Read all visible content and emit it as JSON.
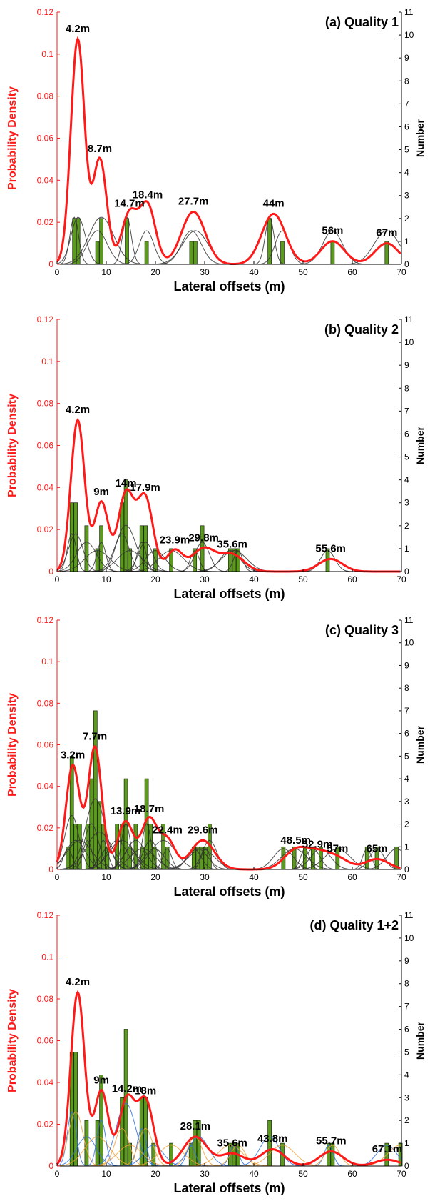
{
  "colors": {
    "pdf_curve": "#ff1a1a",
    "bars": "#5b9a1f",
    "bar_edge": "#1d2b0e",
    "component_curves": "#333333",
    "component_curves_q1": "#2f6fe0",
    "component_curves_q2": "#f2a23a",
    "left_axis": "#ff1a1a",
    "right_axis": "#000000"
  },
  "chart_data": [
    {
      "type": "bar",
      "title": "(a) Quality 1",
      "xlabel": "Lateral offsets (m)",
      "ylabel": "Probability Density",
      "y2label": "Number",
      "xlim": [
        0,
        70
      ],
      "ylim": [
        0,
        0.12
      ],
      "y2lim": [
        0,
        11
      ],
      "x_ticks": [
        "0",
        "10",
        "20",
        "30",
        "40",
        "50",
        "60",
        "70"
      ],
      "y_ticks": [
        "0",
        "0.02",
        "0.04",
        "0.06",
        "0.08",
        "0.1",
        "0.12"
      ],
      "y2_ticks": [
        "0",
        "1",
        "2",
        "3",
        "4",
        "5",
        "6",
        "7",
        "8",
        "9",
        "10",
        "11"
      ],
      "bars": [
        {
          "x": 3.5,
          "count": 2
        },
        {
          "x": 4.3,
          "count": 2
        },
        {
          "x": 8.2,
          "count": 1
        },
        {
          "x": 9.0,
          "count": 2
        },
        {
          "x": 14.2,
          "count": 2
        },
        {
          "x": 18.2,
          "count": 1
        },
        {
          "x": 27.3,
          "count": 1
        },
        {
          "x": 28.1,
          "count": 1
        },
        {
          "x": 43.2,
          "count": 2
        },
        {
          "x": 45.8,
          "count": 1
        },
        {
          "x": 56.0,
          "count": 1
        },
        {
          "x": 67.0,
          "count": 1
        }
      ],
      "peaks": [
        {
          "x": 4.2,
          "y": 0.107,
          "label": "4.2m"
        },
        {
          "x": 8.7,
          "y": 0.05,
          "label": "8.7m"
        },
        {
          "x": 14.7,
          "y": 0.024,
          "label": "14.7m"
        },
        {
          "x": 18.4,
          "y": 0.028,
          "label": "18.4m"
        },
        {
          "x": 27.7,
          "y": 0.025,
          "label": "27.7m"
        },
        {
          "x": 44,
          "y": 0.024,
          "label": "44m"
        },
        {
          "x": 56,
          "y": 0.011,
          "label": "56m"
        },
        {
          "x": 67,
          "y": 0.01,
          "label": "67m"
        }
      ]
    },
    {
      "type": "bar",
      "title": "(b) Quality 2",
      "xlabel": "Lateral offsets (m)",
      "ylabel": "Probability Density",
      "y2label": "Number",
      "xlim": [
        0,
        70
      ],
      "ylim": [
        0,
        0.12
      ],
      "y2lim": [
        0,
        11
      ],
      "x_ticks": [
        "0",
        "10",
        "20",
        "30",
        "40",
        "50",
        "60",
        "70"
      ],
      "y_ticks": [
        "0",
        "0.02",
        "0.04",
        "0.06",
        "0.08",
        "0.1",
        "0.12"
      ],
      "y2_ticks": [
        "0",
        "1",
        "2",
        "3",
        "4",
        "5",
        "6",
        "7",
        "8",
        "9",
        "10",
        "11"
      ],
      "bars": [
        {
          "x": 3.0,
          "count": 3
        },
        {
          "x": 3.8,
          "count": 3
        },
        {
          "x": 6.0,
          "count": 2
        },
        {
          "x": 8.2,
          "count": 1
        },
        {
          "x": 9.0,
          "count": 2
        },
        {
          "x": 13.2,
          "count": 3
        },
        {
          "x": 14.0,
          "count": 4
        },
        {
          "x": 14.8,
          "count": 1
        },
        {
          "x": 17.2,
          "count": 2
        },
        {
          "x": 18.0,
          "count": 2
        },
        {
          "x": 20.0,
          "count": 1
        },
        {
          "x": 23.2,
          "count": 1
        },
        {
          "x": 28.0,
          "count": 1
        },
        {
          "x": 29.5,
          "count": 2
        },
        {
          "x": 35.2,
          "count": 1
        },
        {
          "x": 36.0,
          "count": 1
        },
        {
          "x": 36.8,
          "count": 1
        },
        {
          "x": 55.0,
          "count": 1
        }
      ],
      "peaks": [
        {
          "x": 4.2,
          "y": 0.072,
          "label": "4.2m"
        },
        {
          "x": 9,
          "y": 0.033,
          "label": "9m"
        },
        {
          "x": 14,
          "y": 0.037,
          "label": "14m"
        },
        {
          "x": 17.9,
          "y": 0.035,
          "label": "17.9m"
        },
        {
          "x": 23.9,
          "y": 0.01,
          "label": "23.9m"
        },
        {
          "x": 29.8,
          "y": 0.011,
          "label": "29.8m"
        },
        {
          "x": 35.6,
          "y": 0.008,
          "label": "35.6m"
        },
        {
          "x": 55.6,
          "y": 0.006,
          "label": "55.6m"
        }
      ]
    },
    {
      "type": "bar",
      "title": "(c) Quality 3",
      "xlabel": "Lateral offsets (m)",
      "ylabel": "Probability Density",
      "y2label": "Number",
      "xlim": [
        0,
        70
      ],
      "ylim": [
        0,
        0.12
      ],
      "y2lim": [
        0,
        11
      ],
      "x_ticks": [
        "0",
        "10",
        "20",
        "30",
        "40",
        "50",
        "60",
        "70"
      ],
      "y_ticks": [
        "0",
        "0.02",
        "0.04",
        "0.06",
        "0.08",
        "0.1",
        "0.12"
      ],
      "y2_ticks": [
        "0",
        "1",
        "2",
        "3",
        "4",
        "5",
        "6",
        "7",
        "8",
        "9",
        "10",
        "11"
      ],
      "bars": [
        {
          "x": 2.2,
          "count": 1
        },
        {
          "x": 3.0,
          "count": 5
        },
        {
          "x": 3.8,
          "count": 2
        },
        {
          "x": 4.6,
          "count": 2
        },
        {
          "x": 6.2,
          "count": 2
        },
        {
          "x": 7.0,
          "count": 4
        },
        {
          "x": 7.8,
          "count": 7
        },
        {
          "x": 8.6,
          "count": 3
        },
        {
          "x": 9.4,
          "count": 2
        },
        {
          "x": 10.2,
          "count": 1
        },
        {
          "x": 12.2,
          "count": 2
        },
        {
          "x": 13.2,
          "count": 2
        },
        {
          "x": 14.0,
          "count": 4
        },
        {
          "x": 14.8,
          "count": 1
        },
        {
          "x": 16.0,
          "count": 2
        },
        {
          "x": 17.4,
          "count": 1
        },
        {
          "x": 18.2,
          "count": 4
        },
        {
          "x": 19.0,
          "count": 2
        },
        {
          "x": 19.8,
          "count": 1
        },
        {
          "x": 21.6,
          "count": 2
        },
        {
          "x": 22.4,
          "count": 1
        },
        {
          "x": 27.8,
          "count": 1
        },
        {
          "x": 28.6,
          "count": 1
        },
        {
          "x": 29.4,
          "count": 1
        },
        {
          "x": 30.2,
          "count": 1
        },
        {
          "x": 31.0,
          "count": 2
        },
        {
          "x": 46.0,
          "count": 1
        },
        {
          "x": 48.2,
          "count": 1
        },
        {
          "x": 50.4,
          "count": 1
        },
        {
          "x": 52.0,
          "count": 1
        },
        {
          "x": 53.6,
          "count": 1
        },
        {
          "x": 57.0,
          "count": 1
        },
        {
          "x": 63.0,
          "count": 1
        },
        {
          "x": 65.0,
          "count": 1
        },
        {
          "x": 69.0,
          "count": 1
        }
      ],
      "peaks": [
        {
          "x": 3.2,
          "y": 0.05,
          "label": "3.2m"
        },
        {
          "x": 7.7,
          "y": 0.059,
          "label": "7.7m"
        },
        {
          "x": 13.9,
          "y": 0.023,
          "label": "13.9m"
        },
        {
          "x": 18.7,
          "y": 0.024,
          "label": "18.7m"
        },
        {
          "x": 22.4,
          "y": 0.014,
          "label": "22.4m"
        },
        {
          "x": 29.6,
          "y": 0.014,
          "label": "29.6m"
        },
        {
          "x": 48.5,
          "y": 0.009,
          "label": "48.5m"
        },
        {
          "x": 52.9,
          "y": 0.007,
          "label": "52.9m"
        },
        {
          "x": 57,
          "y": 0.005,
          "label": "57m"
        },
        {
          "x": 65,
          "y": 0.005,
          "label": "65m"
        }
      ]
    },
    {
      "type": "bar",
      "title": "(d) Quality 1+2",
      "xlabel": "Lateral offsets (m)",
      "ylabel": "Probability Density",
      "y2label": "Number",
      "xlim": [
        0,
        70
      ],
      "ylim": [
        0,
        0.12
      ],
      "y2lim": [
        0,
        11
      ],
      "x_ticks": [
        "0",
        "10",
        "20",
        "30",
        "40",
        "50",
        "60",
        "70"
      ],
      "y_ticks": [
        "0",
        "0.02",
        "0.04",
        "0.06",
        "0.08",
        "0.1",
        "0.12"
      ],
      "y2_ticks": [
        "0",
        "1",
        "2",
        "3",
        "4",
        "5",
        "6",
        "7",
        "8",
        "9",
        "10",
        "11"
      ],
      "bars": [
        {
          "x": 3.0,
          "count": 5
        },
        {
          "x": 3.8,
          "count": 5
        },
        {
          "x": 6.0,
          "count": 2
        },
        {
          "x": 8.2,
          "count": 2
        },
        {
          "x": 9.0,
          "count": 4
        },
        {
          "x": 13.2,
          "count": 3
        },
        {
          "x": 14.0,
          "count": 6
        },
        {
          "x": 14.8,
          "count": 1
        },
        {
          "x": 17.2,
          "count": 3
        },
        {
          "x": 18.0,
          "count": 3
        },
        {
          "x": 19.6,
          "count": 1
        },
        {
          "x": 23.2,
          "count": 1
        },
        {
          "x": 27.2,
          "count": 1
        },
        {
          "x": 28.0,
          "count": 2
        },
        {
          "x": 28.8,
          "count": 2
        },
        {
          "x": 35.2,
          "count": 1
        },
        {
          "x": 36.0,
          "count": 1
        },
        {
          "x": 36.8,
          "count": 1
        },
        {
          "x": 43.2,
          "count": 2
        },
        {
          "x": 45.8,
          "count": 1
        },
        {
          "x": 55.2,
          "count": 1
        },
        {
          "x": 56.0,
          "count": 1
        },
        {
          "x": 67.0,
          "count": 1
        },
        {
          "x": 69.8,
          "count": 1
        }
      ],
      "peaks": [
        {
          "x": 4.2,
          "y": 0.083,
          "label": "4.2m"
        },
        {
          "x": 9,
          "y": 0.036,
          "label": "9m"
        },
        {
          "x": 14.2,
          "y": 0.032,
          "label": "14.2m"
        },
        {
          "x": 18,
          "y": 0.031,
          "label": "18m"
        },
        {
          "x": 28.1,
          "y": 0.014,
          "label": "28.1m"
        },
        {
          "x": 35.6,
          "y": 0.006,
          "label": "35.6m"
        },
        {
          "x": 43.8,
          "y": 0.008,
          "label": "43.8m"
        },
        {
          "x": 55.7,
          "y": 0.007,
          "label": "55.7m"
        },
        {
          "x": 67.1,
          "y": 0.003,
          "label": "67.1m"
        }
      ]
    }
  ]
}
